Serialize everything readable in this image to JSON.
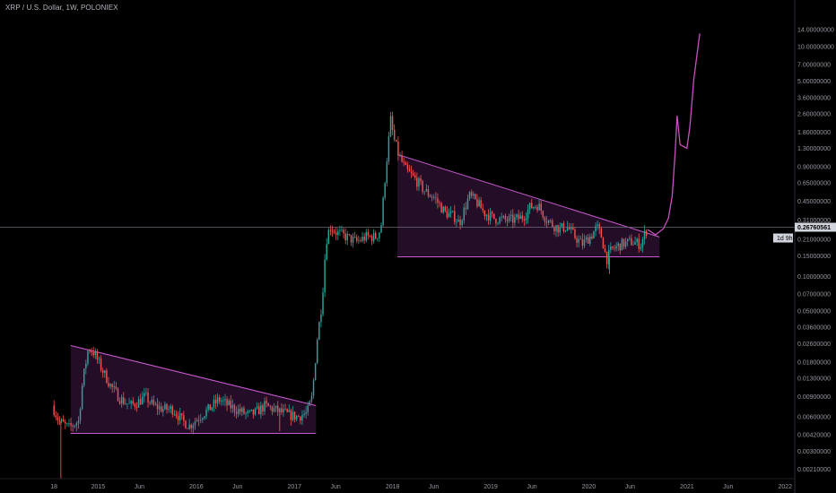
{
  "header": {
    "symbol_line": "XRP / U.S. Dollar, 1W, POLONIEX"
  },
  "colors": {
    "background": "#000000",
    "up": "#26a69a",
    "down": "#ef5350",
    "pattern_line": "#c85ad0",
    "pattern_fill": "#2a0f2e",
    "projection": "#c850c0",
    "crosshair": "#6a6d78",
    "axis_text": "#9598a1",
    "price_tag_bg": "#d1d4dc",
    "count_tag_bg": "#d1d4dc"
  },
  "chart_data": {
    "type": "candlestick",
    "scale": "log",
    "ylim": [
      0.0018,
      22
    ],
    "y_ticks": [
      {
        "v": 14.0,
        "label": "14.00000000"
      },
      {
        "v": 10.0,
        "label": "10.00000000"
      },
      {
        "v": 7.0,
        "label": "7.00000000"
      },
      {
        "v": 5.0,
        "label": "5.00000000"
      },
      {
        "v": 3.6,
        "label": "3.60000000"
      },
      {
        "v": 2.6,
        "label": "2.60000000"
      },
      {
        "v": 1.8,
        "label": "1.80000000"
      },
      {
        "v": 1.3,
        "label": "1.30000000"
      },
      {
        "v": 0.9,
        "label": "0.90000000"
      },
      {
        "v": 0.65,
        "label": "0.65000000"
      },
      {
        "v": 0.45,
        "label": "0.45000000"
      },
      {
        "v": 0.31,
        "label": "0.31000000"
      },
      {
        "v": 0.21,
        "label": "0.21000000"
      },
      {
        "v": 0.15,
        "label": "0.15000000"
      },
      {
        "v": 0.1,
        "label": "0.10000000"
      },
      {
        "v": 0.07,
        "label": "0.07000000"
      },
      {
        "v": 0.05,
        "label": "0.05000000"
      },
      {
        "v": 0.036,
        "label": "0.03600000"
      },
      {
        "v": 0.026,
        "label": "0.02600000"
      },
      {
        "v": 0.018,
        "label": "0.01800000"
      },
      {
        "v": 0.013,
        "label": "0.01300000"
      },
      {
        "v": 0.009,
        "label": "0.00900000"
      },
      {
        "v": 0.006,
        "label": "0.00600000"
      },
      {
        "v": 0.0042,
        "label": "0.00420000"
      },
      {
        "v": 0.003,
        "label": "0.00300000"
      },
      {
        "v": 0.0021,
        "label": "0.00210000"
      }
    ],
    "x_ticks": [
      {
        "t": 2014.55,
        "label": "18"
      },
      {
        "t": 2015.0,
        "label": "2015"
      },
      {
        "t": 2015.42,
        "label": "Jun"
      },
      {
        "t": 2016.0,
        "label": "2016"
      },
      {
        "t": 2016.42,
        "label": "Jun"
      },
      {
        "t": 2017.0,
        "label": "2017"
      },
      {
        "t": 2017.42,
        "label": "Jun"
      },
      {
        "t": 2018.0,
        "label": "2018"
      },
      {
        "t": 2018.42,
        "label": "Jun"
      },
      {
        "t": 2019.0,
        "label": "2019"
      },
      {
        "t": 2019.42,
        "label": "Jun"
      },
      {
        "t": 2020.0,
        "label": "2020"
      },
      {
        "t": 2020.42,
        "label": "Jun"
      },
      {
        "t": 2021.0,
        "label": "2021"
      },
      {
        "t": 2021.42,
        "label": "Jun"
      },
      {
        "t": 2022.0,
        "label": "2022"
      }
    ],
    "xlim": [
      2014.53,
      2022.08
    ],
    "anchors": [
      [
        2014.55,
        0.0075
      ],
      [
        2014.62,
        0.0055
      ],
      [
        2014.72,
        0.0048
      ],
      [
        2014.82,
        0.0055
      ],
      [
        2014.86,
        0.012
      ],
      [
        2014.92,
        0.024
      ],
      [
        2014.97,
        0.022
      ],
      [
        2015.05,
        0.016
      ],
      [
        2015.15,
        0.011
      ],
      [
        2015.25,
        0.0085
      ],
      [
        2015.35,
        0.0075
      ],
      [
        2015.42,
        0.008
      ],
      [
        2015.5,
        0.009
      ],
      [
        2015.58,
        0.0075
      ],
      [
        2015.68,
        0.007
      ],
      [
        2015.78,
        0.007
      ],
      [
        2015.88,
        0.0055
      ],
      [
        2015.95,
        0.005
      ],
      [
        2016.05,
        0.006
      ],
      [
        2016.15,
        0.007
      ],
      [
        2016.25,
        0.0085
      ],
      [
        2016.35,
        0.0075
      ],
      [
        2016.45,
        0.0068
      ],
      [
        2016.55,
        0.0062
      ],
      [
        2016.62,
        0.0065
      ],
      [
        2016.72,
        0.0075
      ],
      [
        2016.8,
        0.007
      ],
      [
        2016.9,
        0.0065
      ],
      [
        2016.97,
        0.0062
      ],
      [
        2017.05,
        0.006
      ],
      [
        2017.15,
        0.0065
      ],
      [
        2017.2,
        0.009
      ],
      [
        2017.25,
        0.028
      ],
      [
        2017.3,
        0.06
      ],
      [
        2017.34,
        0.2
      ],
      [
        2017.38,
        0.27
      ],
      [
        2017.45,
        0.24
      ],
      [
        2017.55,
        0.22
      ],
      [
        2017.65,
        0.2
      ],
      [
        2017.75,
        0.22
      ],
      [
        2017.85,
        0.22
      ],
      [
        2017.9,
        0.26
      ],
      [
        2017.95,
        0.85
      ],
      [
        2018.0,
        2.3
      ],
      [
        2018.03,
        1.6
      ],
      [
        2018.08,
        1.15
      ],
      [
        2018.15,
        0.85
      ],
      [
        2018.25,
        0.7
      ],
      [
        2018.35,
        0.55
      ],
      [
        2018.45,
        0.48
      ],
      [
        2018.55,
        0.36
      ],
      [
        2018.65,
        0.33
      ],
      [
        2018.7,
        0.29
      ],
      [
        2018.75,
        0.38
      ],
      [
        2018.8,
        0.5
      ],
      [
        2018.87,
        0.45
      ],
      [
        2018.95,
        0.36
      ],
      [
        2019.05,
        0.32
      ],
      [
        2019.15,
        0.31
      ],
      [
        2019.25,
        0.31
      ],
      [
        2019.35,
        0.33
      ],
      [
        2019.42,
        0.4
      ],
      [
        2019.5,
        0.42
      ],
      [
        2019.58,
        0.32
      ],
      [
        2019.65,
        0.28
      ],
      [
        2019.72,
        0.26
      ],
      [
        2019.8,
        0.27
      ],
      [
        2019.88,
        0.22
      ],
      [
        2019.95,
        0.19
      ],
      [
        2020.05,
        0.23
      ],
      [
        2020.1,
        0.27
      ],
      [
        2020.15,
        0.22
      ],
      [
        2020.2,
        0.14
      ],
      [
        2020.25,
        0.17
      ],
      [
        2020.35,
        0.19
      ],
      [
        2020.45,
        0.2
      ],
      [
        2020.55,
        0.19
      ],
      [
        2020.6,
        0.25
      ]
    ],
    "spikes": [
      {
        "t": 2014.62,
        "low": 0.00175
      },
      {
        "t": 2016.85,
        "low": 0.0045
      },
      {
        "t": 2020.21,
        "low": 0.105
      }
    ],
    "patterns": [
      {
        "t_start": 2014.72,
        "t_end": 2017.22,
        "upper_start": 0.025,
        "upper_end": 0.0075,
        "lower": 0.0043
      },
      {
        "t_start": 2018.05,
        "t_end": 2020.72,
        "upper_start": 1.15,
        "upper_end": 0.22,
        "lower": 0.148
      }
    ],
    "projection_path": [
      [
        2020.6,
        0.255
      ],
      [
        2020.68,
        0.23
      ],
      [
        2020.76,
        0.26
      ],
      [
        2020.81,
        0.32
      ],
      [
        2020.85,
        0.5
      ],
      [
        2020.88,
        1.2
      ],
      [
        2020.9,
        2.5
      ],
      [
        2020.93,
        1.4
      ],
      [
        2021.0,
        1.3
      ],
      [
        2021.03,
        2.0
      ],
      [
        2021.07,
        5.2
      ],
      [
        2021.13,
        13.0
      ]
    ],
    "current_price": 0.26760561,
    "current_price_label": "0.26760561",
    "countdown_label": "1d 9h"
  }
}
